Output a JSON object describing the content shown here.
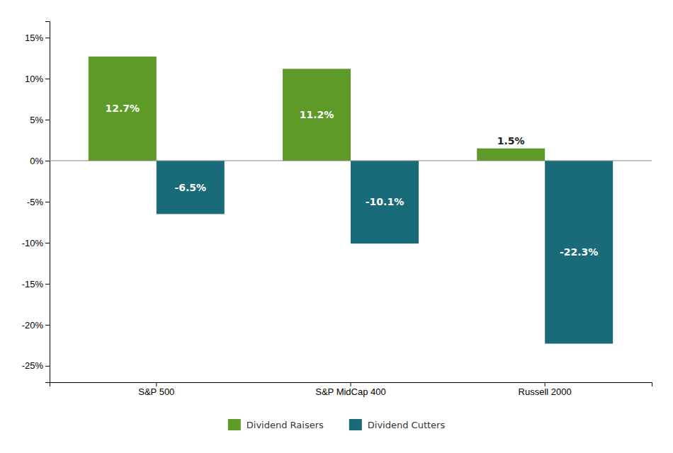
{
  "chart_data": {
    "type": "bar",
    "categories": [
      "S&P 500",
      "S&P MidCap 400",
      "Russell 2000"
    ],
    "series": [
      {
        "name": "Dividend Raisers",
        "color": "#5d9a28",
        "values": [
          12.7,
          11.2,
          1.5
        ],
        "value_labels": [
          "12.7%",
          "11.2%",
          "1.5%"
        ]
      },
      {
        "name": "Dividend Cutters",
        "color": "#1a6b7a",
        "values": [
          -6.5,
          -10.1,
          -22.3
        ],
        "value_labels": [
          "-6.5%",
          "-10.1%",
          "-22.3%"
        ]
      }
    ],
    "ylim": [
      -27,
      17
    ],
    "yticks": [
      {
        "value": -25,
        "label": "-25%"
      },
      {
        "value": -20,
        "label": "-20%"
      },
      {
        "value": -15,
        "label": "-15%"
      },
      {
        "value": -10,
        "label": "-10%"
      },
      {
        "value": -5,
        "label": "-5%"
      },
      {
        "value": 0,
        "label": "0%"
      },
      {
        "value": 5,
        "label": "5%"
      },
      {
        "value": 10,
        "label": "10%"
      },
      {
        "value": 15,
        "label": "15%"
      }
    ],
    "data_labels": true,
    "grid": false,
    "legend": "bottom"
  }
}
